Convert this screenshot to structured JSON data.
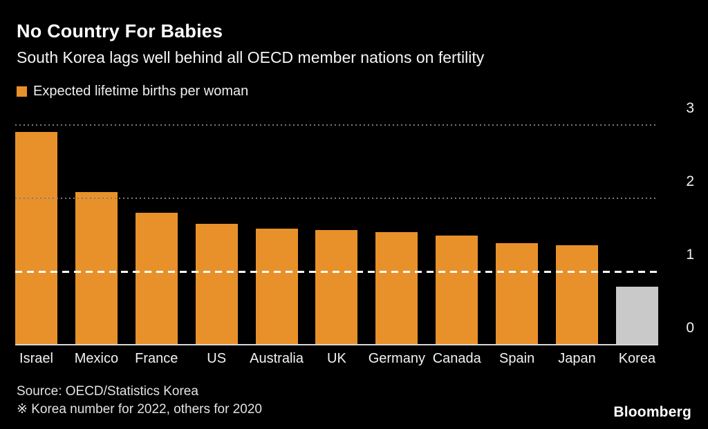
{
  "header": {
    "title": "No Country For Babies",
    "subtitle": "South Korea lags well behind all OECD member nations on fertility"
  },
  "legend": {
    "label": "Expected lifetime births per woman",
    "swatch_color": "#E8912B"
  },
  "chart_data": {
    "type": "bar",
    "title": "No Country For Babies",
    "subtitle": "South Korea lags well behind all OECD member nations on fertility",
    "legend_label": "Expected lifetime births per woman",
    "categories": [
      "Israel",
      "Mexico",
      "France",
      "US",
      "Australia",
      "UK",
      "Germany",
      "Canada",
      "Spain",
      "Japan",
      "Korea"
    ],
    "values": [
      2.9,
      2.08,
      1.79,
      1.64,
      1.58,
      1.56,
      1.53,
      1.48,
      1.38,
      1.35,
      0.78
    ],
    "bar_colors": [
      "#E8912B",
      "#E8912B",
      "#E8912B",
      "#E8912B",
      "#E8912B",
      "#E8912B",
      "#E8912B",
      "#E8912B",
      "#E8912B",
      "#E8912B",
      "#C9C9C9"
    ],
    "highlight_category": "Korea",
    "highlight_color": "#C9C9C9",
    "xlabel": "",
    "ylabel": "",
    "ylim": [
      0,
      3
    ],
    "yticks": [
      0,
      1,
      2,
      3
    ],
    "reference_line": {
      "value": 1,
      "style": "dashed",
      "color": "#FFFFFF"
    },
    "grid": "horizontal-dotted",
    "legend_position": "top-left",
    "background_color": "#000000"
  },
  "footer": {
    "source": "Source: OECD/Statistics Korea",
    "note": "※ Korea number for 2022, others for 2020",
    "brand": "Bloomberg"
  }
}
